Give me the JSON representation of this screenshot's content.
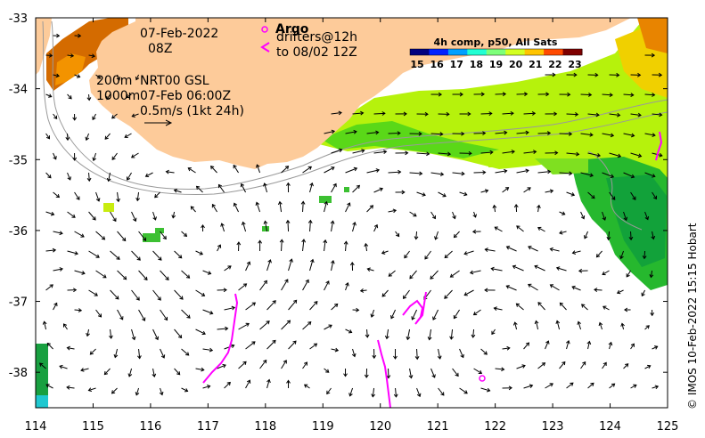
{
  "map": {
    "date": "07-Feb-2022",
    "time": "08Z",
    "depth_200": "200m",
    "depth_1000": "1000m",
    "current_product": "NRT00 GSL",
    "current_time": "07-Feb 06:00Z",
    "scale_label": "0.5m/s (1kt 24h)",
    "argo_label": "Argo",
    "drifters_label": "drifters@12h",
    "drifters_until": "to 08/02 12Z",
    "credit": "© IMOS 10-Feb-2022 15:15 Hobart"
  },
  "colorbar": {
    "title": "4h comp, p50, All Sats",
    "ticks": [
      "15",
      "16",
      "17",
      "18",
      "19",
      "20",
      "21",
      "22",
      "23"
    ],
    "colors": [
      "#00007f",
      "#0022ff",
      "#00a0ff",
      "#21ffd4",
      "#7dff7a",
      "#d4ff21",
      "#ffc400",
      "#ff4a00",
      "#7f0000"
    ]
  },
  "axes": {
    "x_ticks": [
      "114",
      "115",
      "116",
      "117",
      "118",
      "119",
      "120",
      "121",
      "122",
      "123",
      "124",
      "125"
    ],
    "y_ticks": [
      "-33",
      "-34",
      "-35",
      "-36",
      "-37",
      "-38"
    ],
    "lon_range": [
      114,
      125
    ],
    "lat_range": [
      -38.5,
      -33
    ]
  },
  "colors": {
    "land": "#fdcb9a",
    "drifter": "#ff00ff",
    "isobath": "#9a9a9a",
    "arrow": "#000000"
  }
}
